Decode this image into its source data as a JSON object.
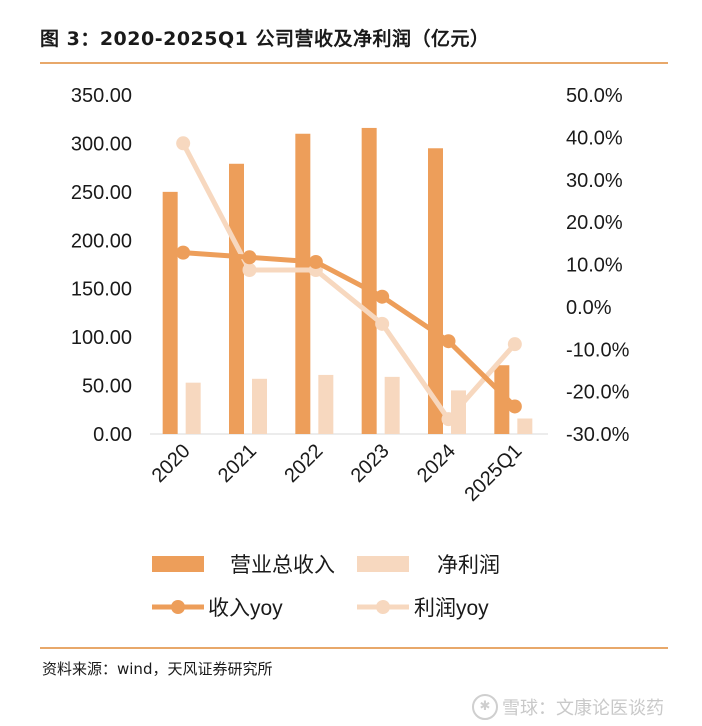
{
  "figure": {
    "title": "图 3：2020-2025Q1 公司营收及净利润（亿元）",
    "source": "资料来源：wind，天风证券研究所",
    "watermark": "雪球：文康论医谈药"
  },
  "colors": {
    "revenue_bar": "#ED9E5A",
    "profit_bar": "#F7D8BF",
    "revenue_yoy_line": "#ED9E5A",
    "profit_yoy_line": "#F7D8BF",
    "rule": "#e8a86a"
  },
  "chart_data": {
    "type": "bar",
    "categories": [
      "2020",
      "2021",
      "2022",
      "2023",
      "2024",
      "2025Q1"
    ],
    "series": [
      {
        "name": "营业总收入",
        "kind": "bar",
        "axis": "left",
        "values": [
          250,
          279,
          310,
          316,
          295,
          71
        ]
      },
      {
        "name": "净利润",
        "kind": "bar",
        "axis": "left",
        "values": [
          53,
          57,
          61,
          59,
          45,
          16
        ]
      },
      {
        "name": "收入yoy",
        "kind": "line",
        "axis": "right",
        "values": [
          0.128,
          0.117,
          0.106,
          0.024,
          -0.081,
          -0.235
        ]
      },
      {
        "name": "利润yoy",
        "kind": "line",
        "axis": "right",
        "values": [
          0.386,
          0.087,
          0.087,
          -0.04,
          -0.265,
          -0.088
        ]
      }
    ],
    "left_axis": {
      "ylim": [
        0,
        350
      ],
      "ticks": [
        "0.00",
        "50.00",
        "100.00",
        "150.00",
        "200.00",
        "250.00",
        "300.00",
        "350.00"
      ]
    },
    "right_axis": {
      "ylim": [
        -0.3,
        0.5
      ],
      "ticks": [
        "-30.0%",
        "-20.0%",
        "-10.0%",
        "0.0%",
        "10.0%",
        "20.0%",
        "30.0%",
        "40.0%",
        "50.0%"
      ]
    },
    "grid": false,
    "legend_position": "bottom",
    "legend": [
      {
        "label": "营业总收入",
        "kind": "bar"
      },
      {
        "label": "净利润",
        "kind": "bar"
      },
      {
        "label": "收入yoy",
        "kind": "line"
      },
      {
        "label": "利润yoy",
        "kind": "line"
      }
    ]
  }
}
